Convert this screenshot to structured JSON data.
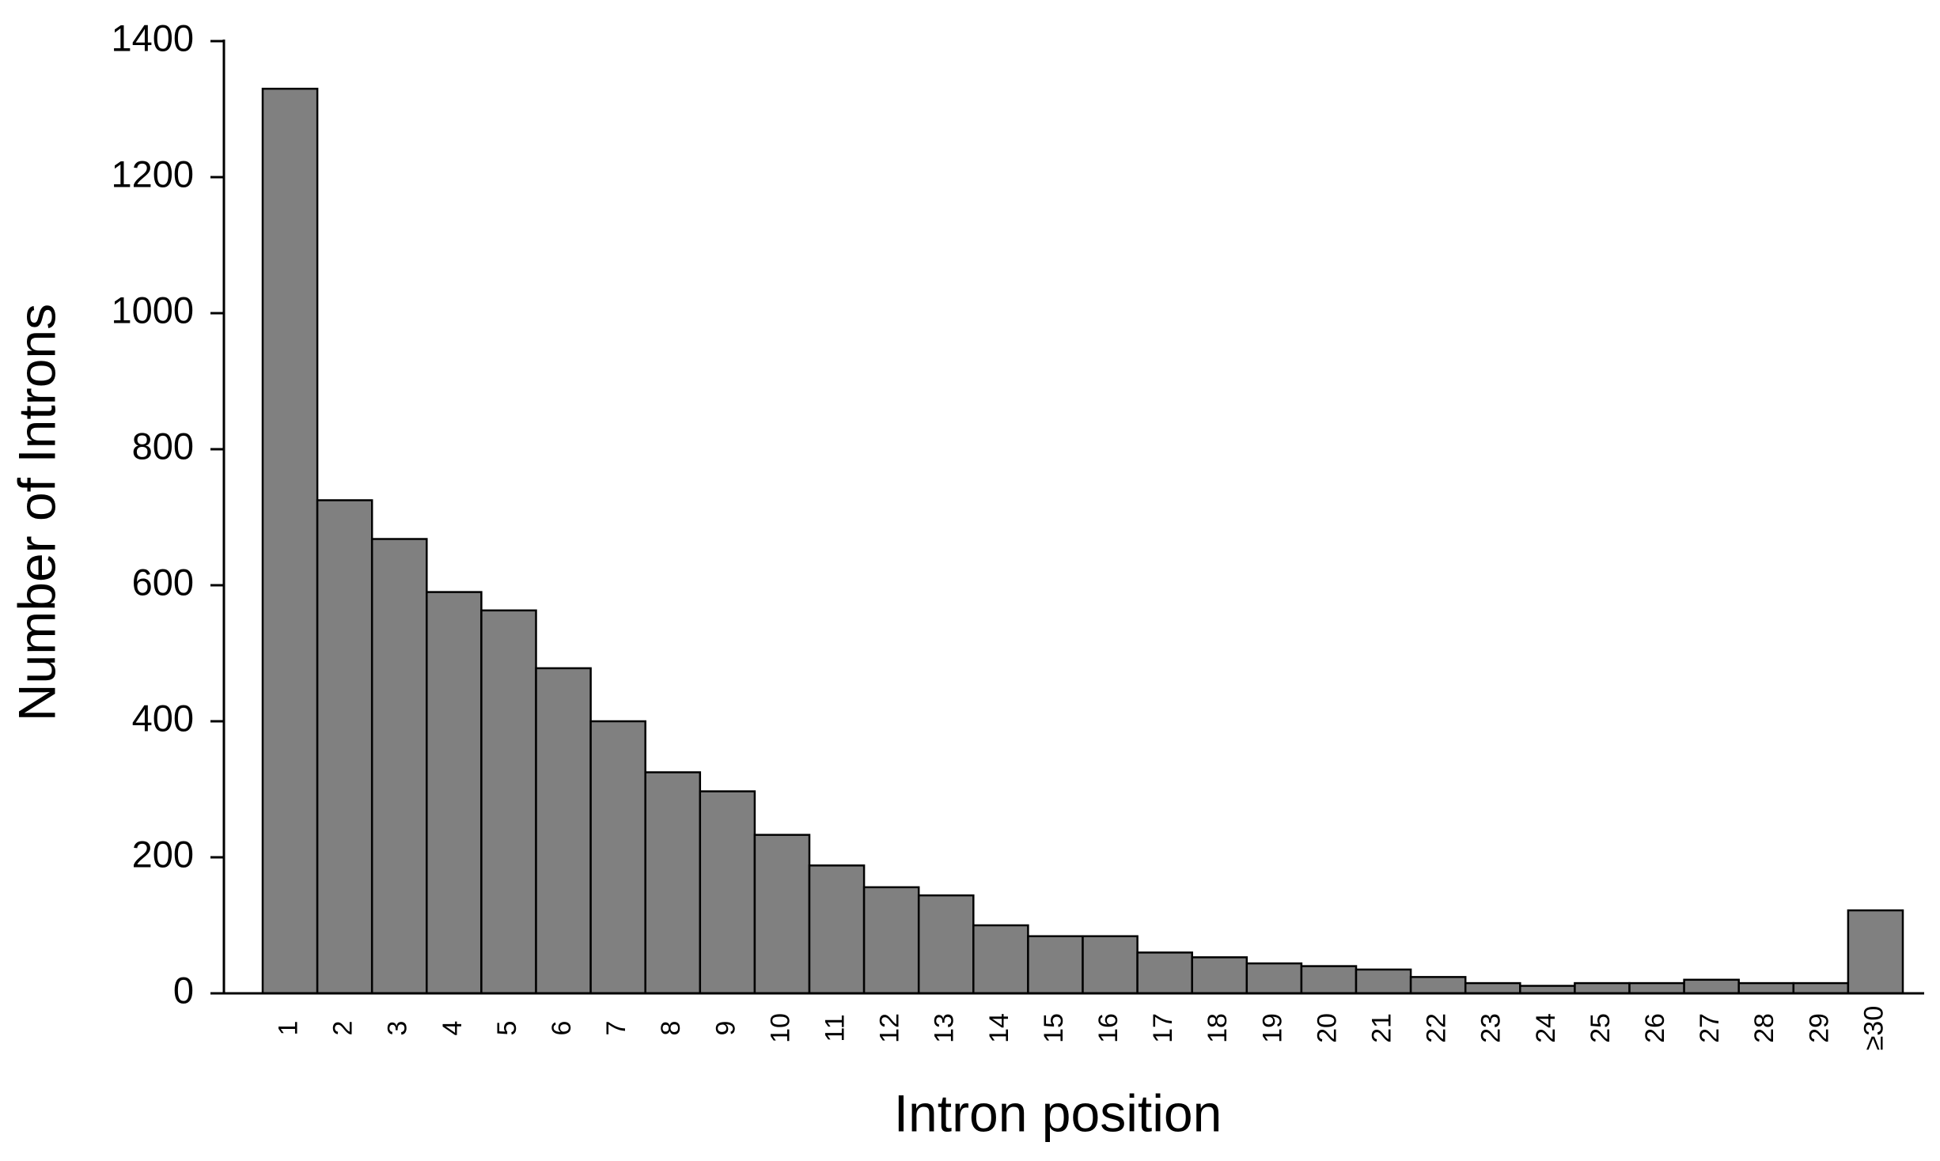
{
  "chart_data": {
    "type": "bar",
    "xlabel": "Intron position",
    "ylabel": "Number of Introns",
    "categories": [
      "1",
      "2",
      "3",
      "4",
      "5",
      "6",
      "7",
      "8",
      "9",
      "10",
      "11",
      "12",
      "13",
      "14",
      "15",
      "16",
      "17",
      "18",
      "19",
      "20",
      "21",
      "22",
      "23",
      "24",
      "25",
      "26",
      "27",
      "28",
      "29",
      "≥30"
    ],
    "values": [
      1330,
      725,
      668,
      590,
      563,
      478,
      400,
      325,
      297,
      233,
      188,
      156,
      144,
      100,
      84,
      84,
      60,
      53,
      44,
      40,
      35,
      24,
      15,
      11,
      15,
      15,
      20,
      15,
      15,
      122
    ],
    "color": "#808080",
    "ylim": [
      0,
      1400
    ],
    "yticks": [
      0,
      200,
      400,
      600,
      800,
      1000,
      1200,
      1400
    ]
  }
}
